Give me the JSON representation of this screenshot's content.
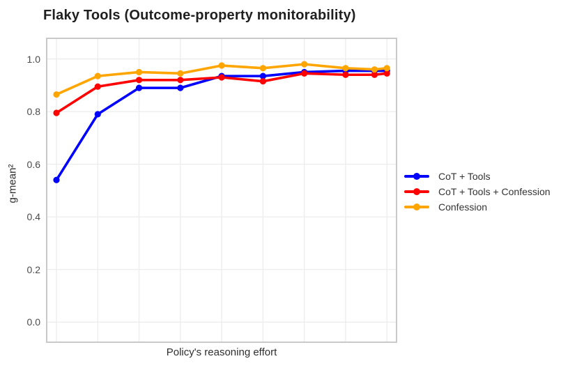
{
  "figure": {
    "background": "#ffffff",
    "panel_border_color": "#c9c9c9",
    "gridline_color": "#ececec",
    "title_color": "#1f1f1f",
    "tick_label_color": "#4a4a4a"
  },
  "chart_data": {
    "type": "line",
    "title": "Flaky Tools (Outcome-property monitorability)",
    "xlabel": "Policy's reasoning effort",
    "ylabel": "g-mean²",
    "grid": true,
    "legend_position": "right",
    "x_tick_labels_shown": false,
    "x_gridlines": [
      0,
      1,
      2,
      3,
      4,
      5,
      6,
      7,
      8
    ],
    "xlim": [
      -0.253,
      8.25
    ],
    "ylim": [
      -0.079,
      1.081
    ],
    "y_ticks": [
      0.0,
      0.2,
      0.4,
      0.6,
      0.8,
      1.0
    ],
    "y_tick_labels": [
      "0.0",
      "0.2",
      "0.4",
      "0.6",
      "0.8",
      "1.0"
    ],
    "x": [
      0,
      1,
      2,
      3,
      4,
      5,
      6,
      7,
      7.7,
      8
    ],
    "series": [
      {
        "name": "CoT + Tools",
        "color": "#0000ff",
        "values": [
          0.54,
          0.79,
          0.89,
          0.89,
          0.935,
          0.935,
          0.95,
          0.955,
          0.955,
          0.955
        ]
      },
      {
        "name": "CoT + Tools + Confession",
        "color": "#ff0000",
        "values": [
          0.795,
          0.895,
          0.92,
          0.92,
          0.93,
          0.915,
          0.945,
          0.94,
          0.94,
          0.945
        ]
      },
      {
        "name": "Confession",
        "color": "#ffa500",
        "values": [
          0.865,
          0.935,
          0.95,
          0.945,
          0.975,
          0.965,
          0.98,
          0.965,
          0.96,
          0.965
        ]
      }
    ]
  }
}
